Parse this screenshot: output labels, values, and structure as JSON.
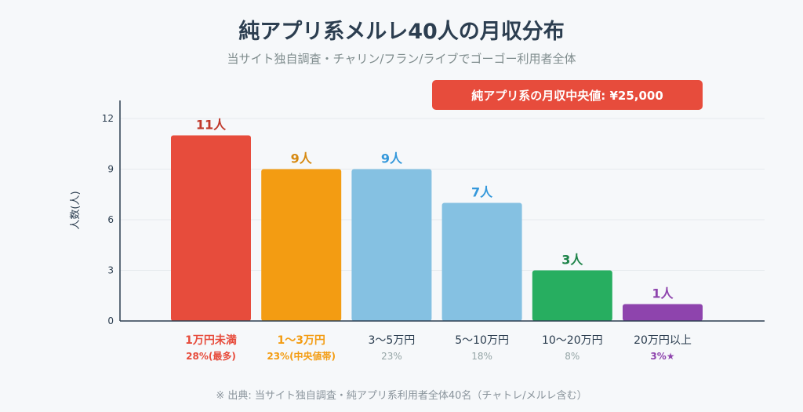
{
  "title": "純アプリ系メルレ40人の月収分布",
  "subtitle": "当サイト独自調査・チャリン/フラン/ライブでゴーゴー利用者全体",
  "median_badge": "純アプリ系の月収中央値: ¥25,000",
  "source": "※ 出典: 当サイト独自調査・純アプリ系利用者全体40名（チャトレ/メルレ含む）",
  "chart_data": {
    "type": "bar",
    "ylabel": "人数(人)",
    "ylim": [
      0,
      13
    ],
    "yticks": [
      0,
      3,
      6,
      9,
      12
    ],
    "grid": true,
    "categories": [
      "1万円未満",
      "1〜3万円",
      "3〜5万円",
      "5〜10万円",
      "10〜20万円",
      "20万円以上"
    ],
    "values": [
      11,
      9,
      9,
      7,
      3,
      1
    ],
    "value_labels": [
      "11人",
      "9人",
      "9人",
      "7人",
      "3人",
      "1人"
    ],
    "percent_labels": [
      "28%(最多)",
      "23%(中央値帯)",
      "23%",
      "18%",
      "8%",
      "3%★"
    ],
    "bar_colors": [
      "#e74c3c",
      "#f39c12",
      "#85c1e2",
      "#85c1e2",
      "#27ae60",
      "#8e44ad"
    ],
    "value_label_colors": [
      "#c0392b",
      "#d68910",
      "#3498db",
      "#3498db",
      "#1e8449",
      "#8e44ad"
    ],
    "category_label_colors": [
      "#e74c3c",
      "#f39c12",
      "#2c3e50",
      "#2c3e50",
      "#2c3e50",
      "#2c3e50"
    ],
    "percent_label_colors": [
      "#e74c3c",
      "#f39c12",
      "#95a5a6",
      "#95a5a6",
      "#95a5a6",
      "#8e44ad"
    ]
  }
}
